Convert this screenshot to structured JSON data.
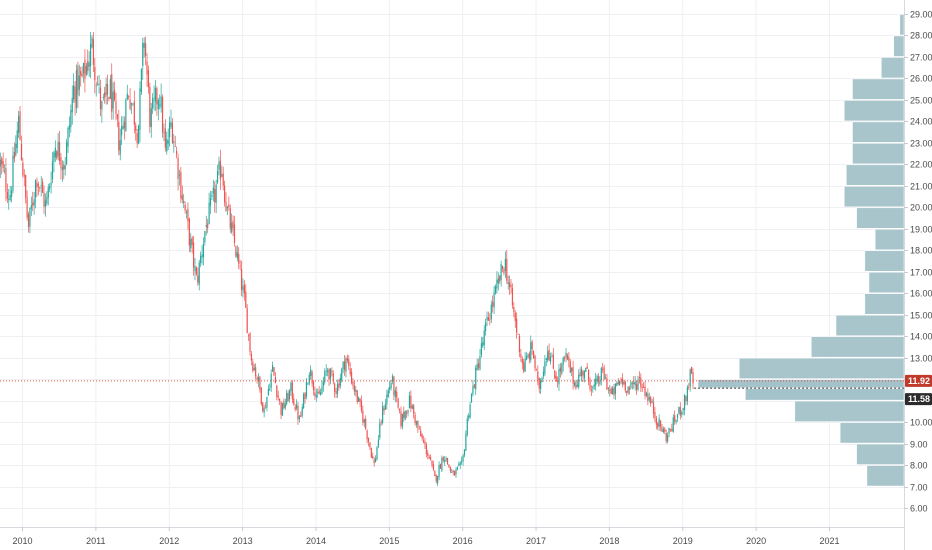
{
  "colors": {
    "background": "#ffffff",
    "grid": "#eef0f3",
    "up_candle": "#26a69a",
    "down_candle": "#ef5350",
    "volume_profile": "#9ebfc6",
    "volume_profile_value_area": "#3a8fa0",
    "last_price_line": "#e74c3c",
    "last_price_badge": "#c0392b",
    "secondary_price_badge": "#2b2b2b",
    "axis_text": "#4a4a4a"
  },
  "chart_data": {
    "type": "candlestick",
    "grid": true,
    "title": "",
    "x_axis": {
      "type": "date",
      "ticks": [
        "2010",
        "2011",
        "2012",
        "2013",
        "2014",
        "2015",
        "2016",
        "2017",
        "2018",
        "2019",
        "2020",
        "2021"
      ],
      "range": [
        "2009-09",
        "2022-01"
      ]
    },
    "y_axis": {
      "position": "right",
      "range": [
        6.0,
        29.0
      ],
      "ticks": [
        "6.00",
        "7.00",
        "8.00",
        "9.00",
        "10.00",
        "11.00",
        "12.00",
        "13.00",
        "14.00",
        "15.00",
        "16.00",
        "17.00",
        "18.00",
        "19.00",
        "20.00",
        "21.00",
        "22.00",
        "23.00",
        "24.00",
        "25.00",
        "26.00",
        "27.00",
        "28.00",
        "29.00"
      ]
    },
    "price_path": {
      "note_unit": "price",
      "points": [
        [
          "2009-09-15",
          22.0
        ],
        [
          "2009-11-01",
          20.5
        ],
        [
          "2009-12-15",
          24.0
        ],
        [
          "2010-02-01",
          19.0
        ],
        [
          "2010-03-15",
          21.5
        ],
        [
          "2010-05-01",
          20.0
        ],
        [
          "2010-06-15",
          23.0
        ],
        [
          "2010-08-01",
          22.0
        ],
        [
          "2010-09-15",
          25.5
        ],
        [
          "2010-11-01",
          26.0
        ],
        [
          "2010-12-15",
          27.5
        ],
        [
          "2011-02-01",
          24.5
        ],
        [
          "2011-03-15",
          25.5
        ],
        [
          "2011-05-01",
          23.0
        ],
        [
          "2011-06-15",
          25.5
        ],
        [
          "2011-08-01",
          23.5
        ],
        [
          "2011-09-01",
          28.0
        ],
        [
          "2011-10-01",
          24.0
        ],
        [
          "2011-11-15",
          25.5
        ],
        [
          "2011-12-15",
          22.5
        ],
        [
          "2012-01-15",
          24.0
        ],
        [
          "2012-03-01",
          21.0
        ],
        [
          "2012-04-15",
          18.5
        ],
        [
          "2012-05-20",
          16.5
        ],
        [
          "2012-07-01",
          19.0
        ],
        [
          "2012-08-15",
          20.5
        ],
        [
          "2012-09-20",
          22.0
        ],
        [
          "2012-10-15",
          20.0
        ],
        [
          "2012-12-01",
          18.0
        ],
        [
          "2013-01-15",
          15.5
        ],
        [
          "2013-02-15",
          13.0
        ],
        [
          "2013-03-20",
          12.0
        ],
        [
          "2013-04-20",
          10.5
        ],
        [
          "2013-06-01",
          12.5
        ],
        [
          "2013-07-15",
          10.5
        ],
        [
          "2013-09-01",
          11.5
        ],
        [
          "2013-10-15",
          10.0
        ],
        [
          "2013-12-01",
          12.5
        ],
        [
          "2014-01-15",
          11.0
        ],
        [
          "2014-03-01",
          12.5
        ],
        [
          "2014-04-15",
          11.5
        ],
        [
          "2014-06-01",
          13.0
        ],
        [
          "2014-07-15",
          11.5
        ],
        [
          "2014-09-01",
          10.0
        ],
        [
          "2014-10-20",
          8.0
        ],
        [
          "2014-12-01",
          10.5
        ],
        [
          "2015-01-15",
          12.0
        ],
        [
          "2015-03-01",
          10.0
        ],
        [
          "2015-04-15",
          11.0
        ],
        [
          "2015-06-01",
          9.5
        ],
        [
          "2015-07-15",
          8.5
        ],
        [
          "2015-08-20",
          7.3
        ],
        [
          "2015-10-01",
          8.5
        ],
        [
          "2015-11-15",
          7.5
        ],
        [
          "2016-01-01",
          8.0
        ],
        [
          "2016-02-01",
          10.5
        ],
        [
          "2016-03-15",
          12.5
        ],
        [
          "2016-05-01",
          14.5
        ],
        [
          "2016-06-15",
          16.0
        ],
        [
          "2016-08-01",
          17.5
        ],
        [
          "2016-09-15",
          15.0
        ],
        [
          "2016-11-01",
          12.5
        ],
        [
          "2016-12-15",
          13.5
        ],
        [
          "2017-01-15",
          11.5
        ],
        [
          "2017-03-01",
          13.5
        ],
        [
          "2017-04-15",
          12.0
        ],
        [
          "2017-06-01",
          13.0
        ],
        [
          "2017-07-15",
          11.8
        ],
        [
          "2017-09-01",
          12.5
        ],
        [
          "2017-10-15",
          11.5
        ],
        [
          "2017-12-01",
          12.3
        ],
        [
          "2018-01-15",
          11.2
        ],
        [
          "2018-03-01",
          12.0
        ],
        [
          "2018-04-15",
          11.5
        ],
        [
          "2018-06-01",
          12.0
        ],
        [
          "2018-07-15",
          11.2
        ],
        [
          "2018-09-01",
          10.0
        ],
        [
          "2018-10-15",
          9.3
        ],
        [
          "2018-12-01",
          10.2
        ],
        [
          "2019-01-15",
          11.0
        ],
        [
          "2019-02-10",
          12.2
        ],
        [
          "2019-03-01",
          11.7
        ]
      ]
    },
    "volume_profile": {
      "bins": [
        {
          "low": 7.0,
          "high": 8.0,
          "volume": 0.18
        },
        {
          "low": 8.0,
          "high": 9.0,
          "volume": 0.23
        },
        {
          "low": 9.0,
          "high": 10.0,
          "volume": 0.31
        },
        {
          "low": 10.0,
          "high": 11.0,
          "volume": 0.53
        },
        {
          "low": 11.0,
          "high": 11.58,
          "volume": 0.77,
          "value_area": true
        },
        {
          "low": 11.58,
          "high": 12.0,
          "volume": 1.0,
          "value_area": true
        },
        {
          "low": 12.0,
          "high": 13.0,
          "volume": 0.8
        },
        {
          "low": 13.0,
          "high": 14.0,
          "volume": 0.45
        },
        {
          "low": 14.0,
          "high": 15.0,
          "volume": 0.33
        },
        {
          "low": 15.0,
          "high": 16.0,
          "volume": 0.19
        },
        {
          "low": 16.0,
          "high": 17.0,
          "volume": 0.17
        },
        {
          "low": 17.0,
          "high": 18.0,
          "volume": 0.19
        },
        {
          "low": 18.0,
          "high": 19.0,
          "volume": 0.14
        },
        {
          "low": 19.0,
          "high": 20.0,
          "volume": 0.23
        },
        {
          "low": 20.0,
          "high": 21.0,
          "volume": 0.29
        },
        {
          "low": 21.0,
          "high": 22.0,
          "volume": 0.28
        },
        {
          "low": 22.0,
          "high": 23.0,
          "volume": 0.25
        },
        {
          "low": 23.0,
          "high": 24.0,
          "volume": 0.25
        },
        {
          "low": 24.0,
          "high": 25.0,
          "volume": 0.29
        },
        {
          "low": 25.0,
          "high": 26.0,
          "volume": 0.25
        },
        {
          "low": 26.0,
          "high": 27.0,
          "volume": 0.11
        },
        {
          "low": 27.0,
          "high": 28.0,
          "volume": 0.05
        },
        {
          "low": 28.0,
          "high": 29.0,
          "volume": 0.02
        }
      ]
    },
    "last_price": {
      "value": 11.92,
      "label": "11.92"
    },
    "secondary_price": {
      "value": 11.58,
      "label": "11.58"
    }
  }
}
